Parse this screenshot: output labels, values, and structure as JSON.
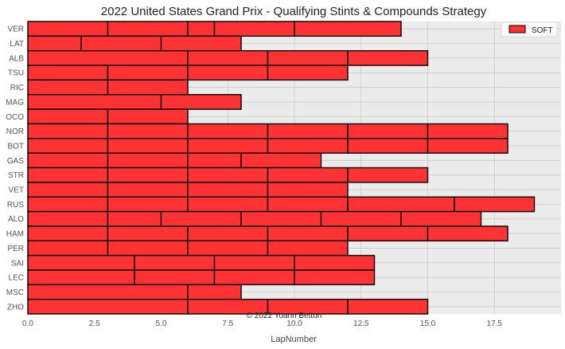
{
  "chart_data": {
    "type": "bar",
    "orientation": "horizontal-stacked",
    "title": "2022 United States Grand Prix - Qualifying Stints & Compounds Strategy",
    "xlabel": "LapNumber",
    "ylabel": "",
    "xlim": [
      0,
      20
    ],
    "x_ticks": [
      "0.0",
      "2.5",
      "5.0",
      "7.5",
      "10.0",
      "12.5",
      "15.0",
      "17.5"
    ],
    "grid": true,
    "legend": {
      "position": "top-right",
      "entries": [
        {
          "label": "SOFT",
          "color": "#ff3333"
        }
      ]
    },
    "credit": "© 2022 Yoann Betton",
    "compound_colors": {
      "SOFT": "#ff3333"
    },
    "drivers": [
      {
        "driver": "VER",
        "stints": [
          3,
          3,
          1,
          3,
          4
        ]
      },
      {
        "driver": "LAT",
        "stints": [
          2,
          3,
          3
        ]
      },
      {
        "driver": "ALB",
        "stints": [
          6,
          3,
          3,
          3
        ]
      },
      {
        "driver": "TSU",
        "stints": [
          3,
          3,
          3,
          3
        ]
      },
      {
        "driver": "RIC",
        "stints": [
          3,
          3
        ]
      },
      {
        "driver": "MAG",
        "stints": [
          5,
          3
        ]
      },
      {
        "driver": "OCO",
        "stints": [
          3,
          3
        ]
      },
      {
        "driver": "NOR",
        "stints": [
          3,
          3,
          3,
          3,
          3,
          3
        ]
      },
      {
        "driver": "BOT",
        "stints": [
          3,
          3,
          3,
          3,
          3,
          3
        ]
      },
      {
        "driver": "GAS",
        "stints": [
          3,
          3,
          2,
          3
        ]
      },
      {
        "driver": "STR",
        "stints": [
          3,
          3,
          3,
          3,
          3
        ]
      },
      {
        "driver": "VET",
        "stints": [
          3,
          3,
          3,
          3
        ]
      },
      {
        "driver": "RUS",
        "stints": [
          3,
          3,
          3,
          3,
          4,
          3
        ]
      },
      {
        "driver": "ALO",
        "stints": [
          3,
          2,
          3,
          3,
          3,
          3
        ]
      },
      {
        "driver": "HAM",
        "stints": [
          3,
          3,
          3,
          3,
          3,
          3
        ]
      },
      {
        "driver": "PER",
        "stints": [
          3,
          3,
          3,
          3
        ]
      },
      {
        "driver": "SAI",
        "stints": [
          4,
          3,
          3,
          3
        ]
      },
      {
        "driver": "LEC",
        "stints": [
          4,
          3,
          3,
          3
        ]
      },
      {
        "driver": "MSC",
        "stints": [
          6,
          2
        ]
      },
      {
        "driver": "ZHO",
        "stints": [
          6,
          3,
          3,
          3
        ]
      }
    ]
  }
}
